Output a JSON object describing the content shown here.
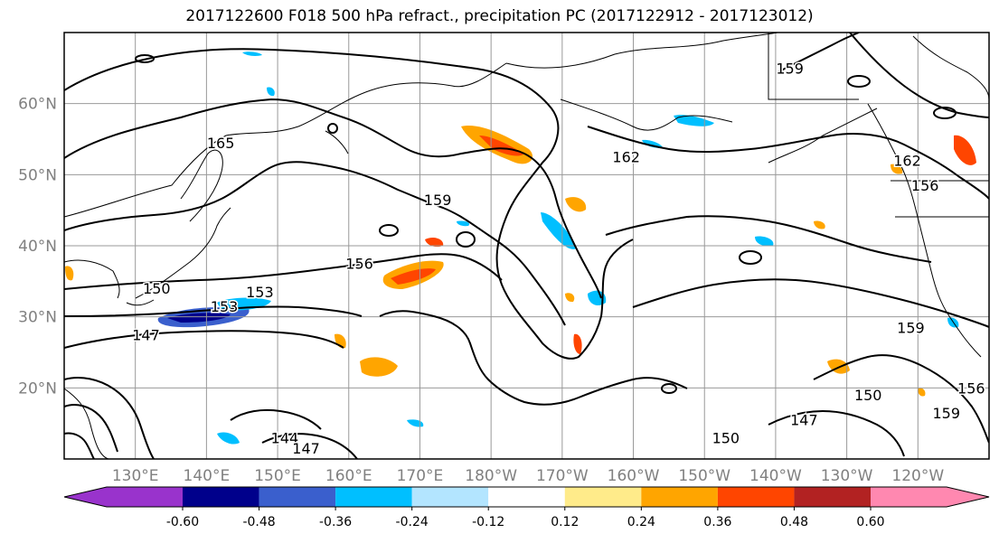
{
  "title": "2017122600 F018 500 hPa refract., precipitation PC (2017122912 - 2017123012)",
  "map": {
    "lat_ticks": [
      {
        "label": "20°N",
        "lat": 20
      },
      {
        "label": "30°N",
        "lat": 30
      },
      {
        "label": "40°N",
        "lat": 40
      },
      {
        "label": "50°N",
        "lat": 50
      },
      {
        "label": "60°N",
        "lat": 60
      }
    ],
    "lon_ticks": [
      {
        "label": "130°E",
        "lon": 130
      },
      {
        "label": "140°E",
        "lon": 140
      },
      {
        "label": "150°E",
        "lon": 150
      },
      {
        "label": "160°E",
        "lon": 160
      },
      {
        "label": "170°E",
        "lon": 170
      },
      {
        "label": "180°W",
        "lon": 180
      },
      {
        "label": "170°W",
        "lon": 190
      },
      {
        "label": "160°W",
        "lon": 200
      },
      {
        "label": "150°W",
        "lon": 210
      },
      {
        "label": "140°W",
        "lon": 220
      },
      {
        "label": "130°W",
        "lon": 230
      },
      {
        "label": "120°W",
        "lon": 240
      }
    ],
    "lon_range": [
      120,
      250
    ],
    "lat_range": [
      10,
      70
    ],
    "grid": true,
    "contour_labels": [
      {
        "text": "165",
        "lon": 142,
        "lat": 54.5
      },
      {
        "text": "162",
        "lon": 199,
        "lat": 52.5
      },
      {
        "text": "159",
        "lon": 172.5,
        "lat": 46.5
      },
      {
        "text": "156",
        "lon": 161.5,
        "lat": 37.5
      },
      {
        "text": "153",
        "lon": 147.5,
        "lat": 33.5
      },
      {
        "text": "153",
        "lon": 142.5,
        "lat": 31.5
      },
      {
        "text": "150",
        "lon": 133,
        "lat": 34
      },
      {
        "text": "147",
        "lon": 131.5,
        "lat": 27.5
      },
      {
        "text": "144",
        "lon": 151,
        "lat": 13
      },
      {
        "text": "147",
        "lon": 154,
        "lat": 11.5
      },
      {
        "text": "159",
        "lon": 222,
        "lat": 65
      },
      {
        "text": "162",
        "lon": 238.5,
        "lat": 52
      },
      {
        "text": "156",
        "lon": 241,
        "lat": 48.5
      },
      {
        "text": "159",
        "lon": 239,
        "lat": 28.5
      },
      {
        "text": "159",
        "lon": 244,
        "lat": 16.5
      },
      {
        "text": "156",
        "lon": 247.5,
        "lat": 20
      },
      {
        "text": "147",
        "lon": 224,
        "lat": 15.5
      },
      {
        "text": "150",
        "lon": 233,
        "lat": 19
      },
      {
        "text": "150",
        "lon": 213,
        "lat": 13
      }
    ]
  },
  "colorbar": {
    "boundaries": [
      "-0.60",
      "-0.48",
      "-0.36",
      "-0.24",
      "-0.12",
      "0.12",
      "0.24",
      "0.36",
      "0.48",
      "0.60"
    ],
    "colors": [
      "#9933cc",
      "#00008b",
      "#3a5fcd",
      "#00bfff",
      "#b3e5ff",
      "#ffffff",
      "#ffeb8a",
      "#ffa500",
      "#ff4500",
      "#b22222",
      "#ff88b0"
    ]
  }
}
